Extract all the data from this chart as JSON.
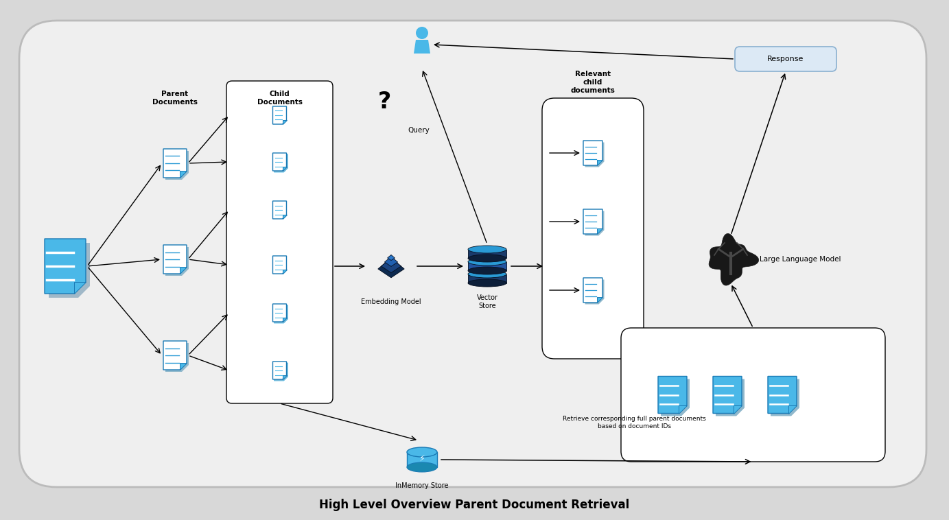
{
  "bg_color": "#d8d8d8",
  "canvas_color": "#efefef",
  "title": "High Level Overview Parent Document Retrieval",
  "title_fontsize": 12,
  "title_fontweight": "bold",
  "doc_blue_dark": "#1a7ab5",
  "doc_blue_light": "#4ab8e8",
  "doc_blue_mid": "#2a9ad5",
  "arrow_color": "#000000",
  "box_fill": "#dce9f5",
  "box_edge": "#8ab0d0",
  "labels": {
    "parent_docs": "Parent\nDocuments",
    "child_docs": "Child\nDocuments",
    "query": "Query",
    "relevant_child": "Relevant\nchild\ndocuments",
    "embedding_model": "Embedding Model",
    "vector_store": "Vector\nStore",
    "inmemory_store": "InMemory Store",
    "response": "Response",
    "llm": "Large Language Model",
    "retrieve_text": "Retrieve corresponding full parent documents\nbased on document IDs"
  }
}
